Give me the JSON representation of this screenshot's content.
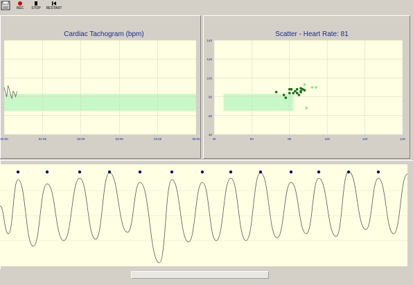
{
  "toolbar": {
    "rec_label": "REC",
    "stop_label": "STOP",
    "restart_label": "RESTART"
  },
  "colors": {
    "plot_bg": "#ffffe3",
    "target_zone": "#c8f8c8",
    "title_text": "#1b2b8a",
    "waveform": "#555555",
    "peak_marker": "#10106a"
  },
  "tachogram": {
    "title": "Cardiac Tachogram (bpm)",
    "x_ticks": [
      "00:00",
      "01:00",
      "02:00",
      "03:00",
      "04:00",
      "05:00"
    ],
    "target_zone_bpm": [
      65,
      83
    ]
  },
  "scatter": {
    "title": "Scatter - Heart Rate: 81",
    "x_ticks": [
      "40",
      "60",
      "80",
      "100",
      "120",
      "140"
    ],
    "y_ticks": [
      "140",
      "120",
      "100",
      "80",
      "60",
      "40"
    ],
    "target_zone": {
      "x": [
        45,
        82
      ],
      "y": [
        65,
        83
      ]
    }
  },
  "chart_data": [
    {
      "type": "line",
      "title": "Cardiac Tachogram (bpm)",
      "x_ticks": [
        "00:00",
        "01:00",
        "02:00",
        "03:00",
        "04:00",
        "05:00"
      ],
      "xlim_seconds": [
        0,
        300
      ],
      "series": [
        {
          "x": [
            0,
            2,
            4,
            6,
            8,
            10,
            12,
            14,
            16,
            18,
            20
          ],
          "values": [
            90,
            85,
            80,
            92,
            88,
            82,
            78,
            86,
            84,
            80,
            86
          ]
        }
      ],
      "grid": true
    },
    {
      "type": "scatter",
      "title": "Scatter - Heart Rate: 81",
      "x_ticks": [
        "40",
        "60",
        "80",
        "100",
        "120",
        "140"
      ],
      "y_ticks": [
        "140",
        "120",
        "100",
        "80",
        "60",
        "40"
      ],
      "xlim": [
        40,
        140
      ],
      "ylim": [
        40,
        140
      ],
      "series": [
        {
          "x": [
            73,
            77,
            78,
            80,
            81,
            82,
            83,
            84,
            85,
            86,
            86,
            87,
            88,
            80,
            84,
            86
          ],
          "y": [
            85,
            82,
            79,
            84,
            88,
            84,
            86,
            84,
            82,
            85,
            89,
            88,
            87,
            88,
            88,
            86
          ]
        },
        {
          "x": [
            88,
            92,
            94,
            89
          ],
          "y": [
            93,
            90,
            90,
            68
          ]
        }
      ],
      "grid": true
    }
  ]
}
